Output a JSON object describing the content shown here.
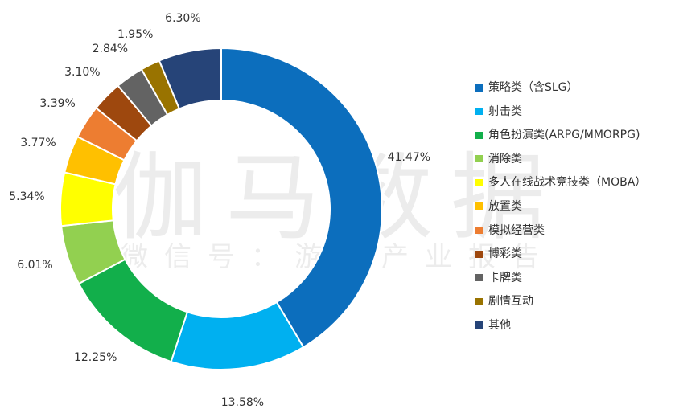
{
  "watermark": {
    "main": "伽马数据",
    "sub": "微信号：游戏产业报告"
  },
  "chart_data": {
    "type": "pie",
    "donut": true,
    "legend_position": "right",
    "slices": [
      {
        "name": "策略类（含SLG）",
        "value": 41.47,
        "label": "41.47%",
        "color": "#0C6EBD"
      },
      {
        "name": "射击类",
        "value": 13.58,
        "label": "13.58%",
        "color": "#00B0F0"
      },
      {
        "name": "角色扮演类(ARPG/MMORPG)",
        "value": 12.25,
        "label": "12.25%",
        "color": "#12AF4B"
      },
      {
        "name": "消除类",
        "value": 6.01,
        "label": "6.01%",
        "color": "#92D050"
      },
      {
        "name": "多人在线战术竞技类（MOBA）",
        "value": 5.34,
        "label": "5.34%",
        "color": "#FFFF00"
      },
      {
        "name": "放置类",
        "value": 3.77,
        "label": "3.77%",
        "color": "#FFC000"
      },
      {
        "name": "模拟经营类",
        "value": 3.39,
        "label": "3.39%",
        "color": "#ED7D31"
      },
      {
        "name": "博彩类",
        "value": 3.1,
        "label": "3.10%",
        "color": "#9E480E"
      },
      {
        "name": "卡牌类",
        "value": 2.84,
        "label": "2.84%",
        "color": "#636363"
      },
      {
        "name": "剧情互动",
        "value": 1.95,
        "label": "1.95%",
        "color": "#997300"
      },
      {
        "name": "其他",
        "value": 6.3,
        "label": "6.30%",
        "color": "#264478"
      }
    ]
  }
}
